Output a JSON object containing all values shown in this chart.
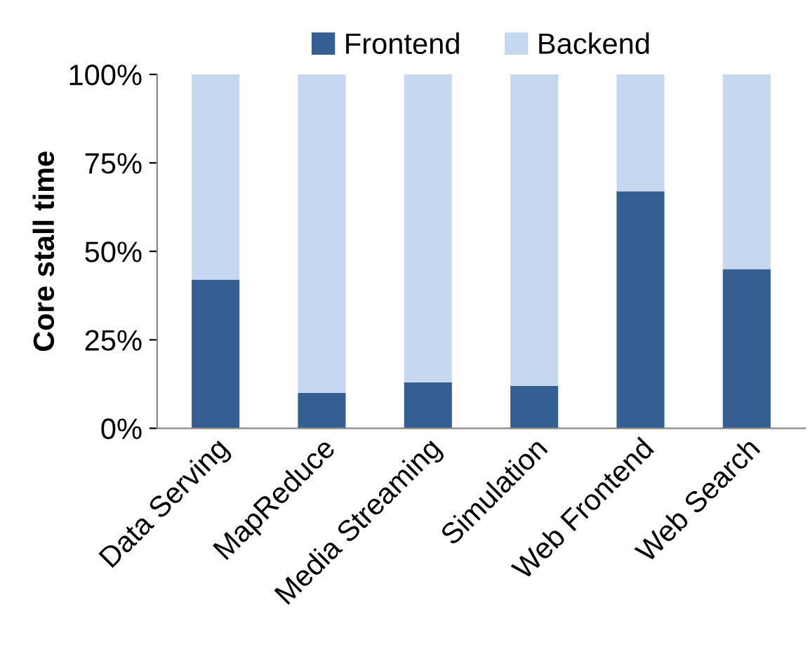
{
  "chart_data": {
    "type": "bar",
    "stacked": true,
    "ylabel": "Core stall time",
    "categories": [
      "Data Serving",
      "MapReduce",
      "Media Streaming",
      "Simulation",
      "Web Frontend",
      "Web Search"
    ],
    "series": [
      {
        "name": "Frontend",
        "color": "#355f93",
        "values": [
          42,
          10,
          13,
          12,
          67,
          45
        ]
      },
      {
        "name": "Backend",
        "color": "#c6d8ef",
        "values": [
          58,
          90,
          87,
          88,
          33,
          55
        ]
      }
    ],
    "ylim": [
      0,
      100
    ],
    "yticks": [
      {
        "value": 0,
        "label": "0%"
      },
      {
        "value": 25,
        "label": "25%"
      },
      {
        "value": 50,
        "label": "50%"
      },
      {
        "value": 75,
        "label": "75%"
      },
      {
        "value": 100,
        "label": "100%"
      }
    ],
    "grid": false,
    "legend": "top"
  }
}
